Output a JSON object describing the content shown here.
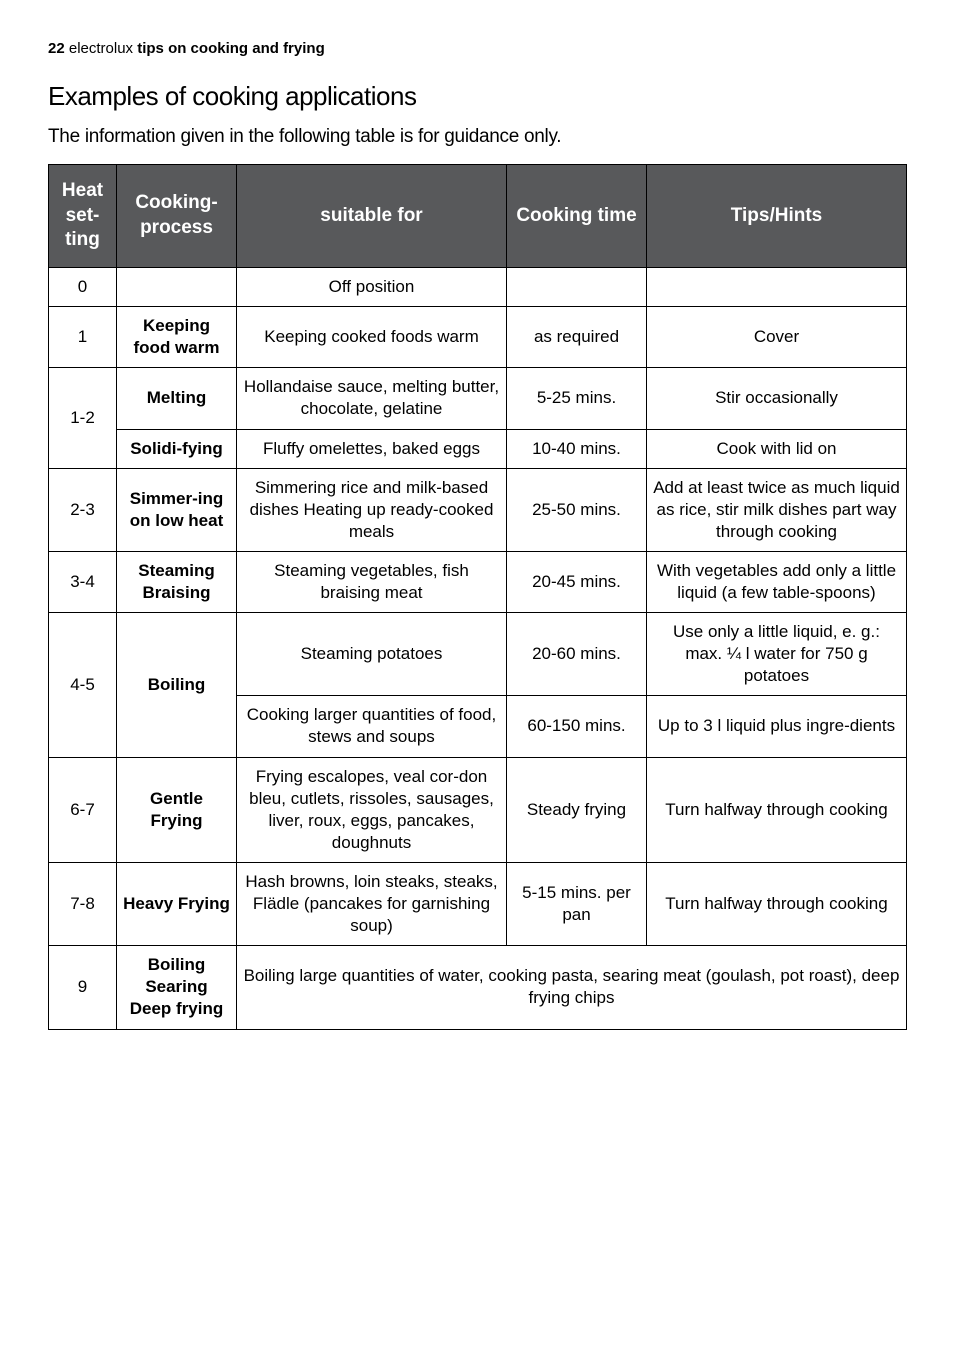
{
  "header": {
    "page_number": "22",
    "brand": "electrolux",
    "section": "tips on cooking and frying"
  },
  "title": "Examples of cooking applications",
  "intro": "The information given in the following table is for guidance only.",
  "table": {
    "columns": {
      "heat": "Heat set-ting",
      "process": "Cooking-process",
      "suitable": "suitable for",
      "time": "Cooking time",
      "tips": "Tips/Hints"
    },
    "rows": [
      {
        "heat": "0",
        "process": "",
        "suitable": "Off position",
        "time": "",
        "tips": ""
      },
      {
        "heat": "1",
        "process": "Keeping food warm",
        "suitable": "Keeping cooked foods warm",
        "time": "as required",
        "tips": "Cover"
      },
      {
        "heat": "1-2",
        "heat_rowspan": 2,
        "process": "Melting",
        "suitable": "Hollandaise sauce, melting butter, chocolate, gelatine",
        "time": "5-25 mins.",
        "tips": "Stir occasionally"
      },
      {
        "process": "Solidi-fying",
        "suitable": "Fluffy omelettes, baked eggs",
        "time": "10-40 mins.",
        "tips": "Cook with lid on"
      },
      {
        "heat": "2-3",
        "process": "Simmer-ing on low heat",
        "suitable": "Simmering rice and milk-based dishes Heating up ready-cooked meals",
        "time": "25-50 mins.",
        "tips": "Add at least twice as much liquid as rice, stir milk dishes part way through cooking"
      },
      {
        "heat": "3-4",
        "process": "Steaming Braising",
        "suitable": "Steaming vegetables, fish braising meat",
        "time": "20-45 mins.",
        "tips": "With vegetables add only a little liquid (a few table-spoons)"
      },
      {
        "heat": "4-5",
        "heat_rowspan": 2,
        "process": "Boiling",
        "process_rowspan": 2,
        "suitable": "Steaming potatoes",
        "time": "20-60 mins.",
        "tips": "Use only a little liquid, e. g.: max. ¼  l water for 750 g potatoes"
      },
      {
        "suitable": "Cooking larger quantities of food, stews and soups",
        "time": "60-150 mins.",
        "tips": "Up to 3 l liquid plus ingre-dients"
      },
      {
        "heat": "6-7",
        "process": "Gentle Frying",
        "suitable": "Frying escalopes, veal cor-don bleu, cutlets, rissoles, sausages, liver, roux, eggs, pancakes, doughnuts",
        "time": "Steady frying",
        "tips": "Turn halfway through cooking"
      },
      {
        "heat": "7-8",
        "process": "Heavy Frying",
        "suitable": "Hash browns, loin steaks, steaks, Flädle (pancakes for garnishing soup)",
        "time": "5-15 mins. per pan",
        "tips": "Turn halfway through cooking"
      },
      {
        "heat": "9",
        "process": "Boiling Searing Deep frying",
        "merged": "Boiling large quantities of water, cooking pasta, searing meat (goulash, pot roast), deep frying chips"
      }
    ]
  },
  "colors": {
    "header_bg": "#58595b",
    "header_text": "#ffffff",
    "border": "#000000",
    "body_text": "#000000",
    "background": "#ffffff"
  }
}
